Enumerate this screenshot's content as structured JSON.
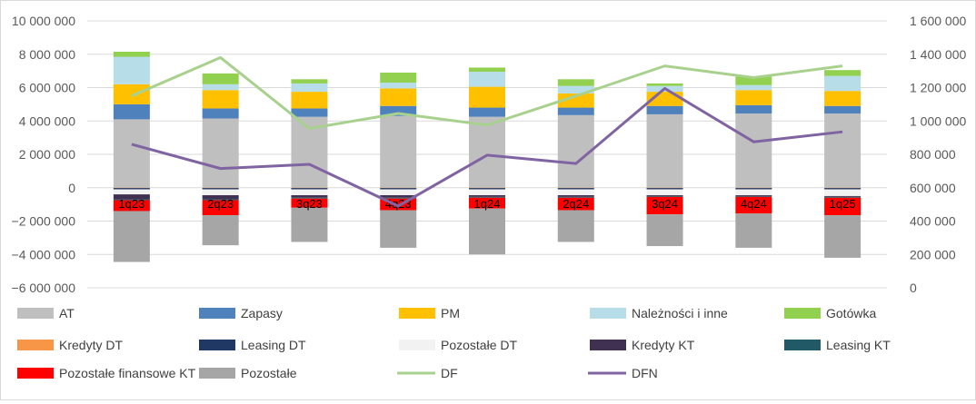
{
  "chart_data": {
    "type": "bar",
    "stacked": true,
    "categories": [
      "1q23",
      "2q23",
      "3q23",
      "4q23",
      "1q24",
      "2q24",
      "3q24",
      "4q24",
      "1q25"
    ],
    "y_left": {
      "ylim": [
        -6000000,
        10000000
      ],
      "ticks": [
        -6000000,
        -4000000,
        -2000000,
        0,
        2000000,
        4000000,
        6000000,
        8000000,
        10000000
      ]
    },
    "y_right": {
      "ylim": [
        0,
        1600000
      ],
      "ticks": [
        0,
        200000,
        400000,
        600000,
        800000,
        1000000,
        1200000,
        1400000,
        1600000
      ]
    },
    "grid": true,
    "legend_position": "bottom",
    "category_labels_position": "inside-negative-bars",
    "series": [
      {
        "name": "AT",
        "color": "#bfbfbf",
        "kind": "bar",
        "values": [
          4100000,
          4150000,
          4250000,
          4300000,
          4250000,
          4350000,
          4400000,
          4450000,
          4450000
        ]
      },
      {
        "name": "Zapasy",
        "color": "#4f81bd",
        "kind": "bar",
        "values": [
          900000,
          600000,
          500000,
          600000,
          550000,
          450000,
          500000,
          500000,
          450000
        ]
      },
      {
        "name": "PM",
        "color": "#ffc000",
        "kind": "bar",
        "values": [
          1200000,
          1100000,
          1000000,
          1050000,
          1250000,
          850000,
          850000,
          900000,
          900000
        ]
      },
      {
        "name": "Należności i inne",
        "color": "#b7dde8",
        "kind": "bar",
        "values": [
          1650000,
          350000,
          500000,
          350000,
          900000,
          450000,
          350000,
          300000,
          900000
        ]
      },
      {
        "name": "Gotówka",
        "color": "#92d050",
        "kind": "bar",
        "values": [
          300000,
          650000,
          250000,
          600000,
          250000,
          400000,
          150000,
          500000,
          350000
        ]
      },
      {
        "name": "Kredyty DT",
        "color": "#f79646",
        "kind": "bar",
        "values": [
          -20000,
          -20000,
          -20000,
          -20000,
          -20000,
          -20000,
          -20000,
          -20000,
          -20000
        ]
      },
      {
        "name": "Leasing DT",
        "color": "#1f3864",
        "kind": "bar",
        "values": [
          -80000,
          -80000,
          -80000,
          -80000,
          -80000,
          -80000,
          -80000,
          -80000,
          -80000
        ]
      },
      {
        "name": "Pozostałe DT",
        "color": "#f2f2f2",
        "kind": "bar",
        "values": [
          -300000,
          -350000,
          -350000,
          -350000,
          -350000,
          -350000,
          -350000,
          -350000,
          -400000
        ]
      },
      {
        "name": "Kredyty KT",
        "color": "#403152",
        "kind": "bar",
        "values": [
          -300000,
          -250000,
          -150000,
          -150000,
          -100000,
          -100000,
          -50000,
          -50000,
          -50000
        ]
      },
      {
        "name": "Leasing KT",
        "color": "#215967",
        "kind": "bar",
        "values": [
          -50000,
          -50000,
          -50000,
          -50000,
          -50000,
          -50000,
          -50000,
          -50000,
          -50000
        ]
      },
      {
        "name": "Pozostałe finansowe KT",
        "color": "#ff0000",
        "kind": "bar",
        "values": [
          -650000,
          -900000,
          -550000,
          -700000,
          -650000,
          -750000,
          -1050000,
          -1000000,
          -1050000
        ]
      },
      {
        "name": "Pozostałe",
        "color": "#a6a6a6",
        "kind": "bar",
        "values": [
          -3050000,
          -1800000,
          -2050000,
          -2250000,
          -2750000,
          -1900000,
          -1900000,
          -2050000,
          -2550000
        ]
      },
      {
        "name": "DF",
        "color": "#a9d18e",
        "kind": "line",
        "axis": "right",
        "values": [
          1150000,
          1380000,
          955000,
          1045000,
          975000,
          1150000,
          1330000,
          1260000,
          1330000
        ]
      },
      {
        "name": "DFN",
        "color": "#8064a2",
        "kind": "line",
        "axis": "right",
        "values": [
          860000,
          715000,
          740000,
          490000,
          795000,
          745000,
          1195000,
          875000,
          935000
        ]
      }
    ]
  }
}
